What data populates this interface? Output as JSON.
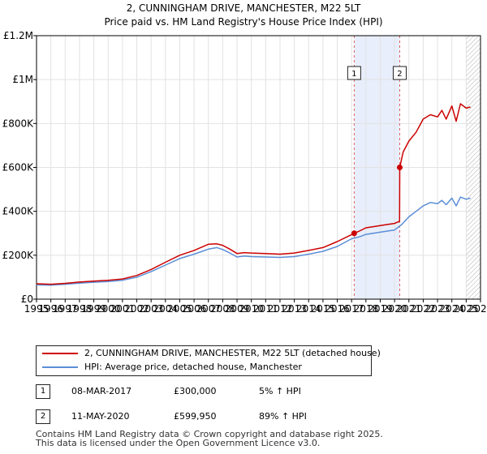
{
  "chart_data": {
    "type": "line",
    "title": "2, CUNNINGHAM DRIVE, MANCHESTER, M22 5LT",
    "subtitle": "Price paid vs. HM Land Registry's House Price Index (HPI)",
    "xlim": [
      1995,
      2026
    ],
    "ylim": [
      0,
      1200000
    ],
    "x_ticks": [
      "1995",
      "1996",
      "1997",
      "1998",
      "1999",
      "2000",
      "2001",
      "2002",
      "2003",
      "2004",
      "2005",
      "2006",
      "2007",
      "2008",
      "2009",
      "2010",
      "2011",
      "2012",
      "2013",
      "2014",
      "2015",
      "2016",
      "2017",
      "2018",
      "2019",
      "2020",
      "2021",
      "2022",
      "2023",
      "2024",
      "2025",
      "2026"
    ],
    "y_ticks": [
      {
        "value": 0,
        "label": "£0"
      },
      {
        "value": 200000,
        "label": "£200K"
      },
      {
        "value": 400000,
        "label": "£400K"
      },
      {
        "value": 600000,
        "label": "£600K"
      },
      {
        "value": 800000,
        "label": "£800K"
      },
      {
        "value": 1000000,
        "label": "£1M"
      },
      {
        "value": 1200000,
        "label": "£1.2M"
      }
    ],
    "grid": true,
    "shaded_band": {
      "from": 2017.18,
      "to": 2020.36
    },
    "future_hatch_from": 2025.0,
    "series": [
      {
        "name": "2, CUNNINGHAM DRIVE, MANCHESTER, M22 5LT (detached house)",
        "color": "#cc0000",
        "x": [
          1995,
          1996,
          1997,
          1998,
          1999,
          2000,
          2001,
          2002,
          2003,
          2004,
          2005,
          2006,
          2007,
          2007.6,
          2008,
          2008.5,
          2009,
          2009.5,
          2010,
          2011,
          2012,
          2013,
          2014,
          2015,
          2016,
          2017.18,
          2017.6,
          2018,
          2018.5,
          2019,
          2019.5,
          2020,
          2020.35,
          2020.36,
          2020.6,
          2021,
          2021.5,
          2022,
          2022.5,
          2023,
          2023.3,
          2023.6,
          2024,
          2024.3,
          2024.6,
          2025,
          2025.3
        ],
        "values": [
          70000,
          68000,
          72000,
          78000,
          82000,
          86000,
          92000,
          108000,
          135000,
          168000,
          200000,
          222000,
          250000,
          252000,
          245000,
          228000,
          208000,
          212000,
          210000,
          208000,
          205000,
          210000,
          222000,
          235000,
          262000,
          300000,
          312000,
          325000,
          330000,
          335000,
          340000,
          345000,
          355000,
          599950,
          670000,
          720000,
          760000,
          820000,
          840000,
          830000,
          860000,
          820000,
          880000,
          810000,
          890000,
          870000,
          875000
        ]
      },
      {
        "name": "HPI: Average price, detached house, Manchester",
        "color": "#5b8ed6",
        "x": [
          1995,
          1996,
          1997,
          1998,
          1999,
          2000,
          2001,
          2002,
          2003,
          2004,
          2005,
          2006,
          2007,
          2007.6,
          2008,
          2008.5,
          2009,
          2009.5,
          2010,
          2011,
          2012,
          2013,
          2014,
          2015,
          2016,
          2017,
          2017.6,
          2018,
          2018.5,
          2019,
          2019.5,
          2020,
          2020.5,
          2021,
          2021.5,
          2022,
          2022.5,
          2023,
          2023.3,
          2023.6,
          2024,
          2024.3,
          2024.6,
          2025,
          2025.3
        ],
        "values": [
          65000,
          64000,
          68000,
          73000,
          77000,
          80000,
          86000,
          100000,
          125000,
          155000,
          185000,
          205000,
          228000,
          235000,
          226000,
          210000,
          192000,
          196000,
          194000,
          192000,
          190000,
          194000,
          205000,
          218000,
          240000,
          275000,
          285000,
          295000,
          300000,
          305000,
          310000,
          315000,
          340000,
          375000,
          400000,
          425000,
          440000,
          435000,
          450000,
          430000,
          460000,
          425000,
          465000,
          455000,
          460000
        ]
      }
    ],
    "annotations": [
      {
        "label": "1",
        "x": 2017.18,
        "value": 300000
      },
      {
        "label": "2",
        "x": 2020.36,
        "value": 599950
      }
    ]
  },
  "legend": {
    "items": [
      {
        "label": "2, CUNNINGHAM DRIVE, MANCHESTER, M22 5LT (detached house)",
        "color": "#cc0000"
      },
      {
        "label": "HPI: Average price, detached house, Manchester",
        "color": "#5b8ed6"
      }
    ]
  },
  "transactions": [
    {
      "num": "1",
      "date": "08-MAR-2017",
      "price": "£300,000",
      "hpi": "5% ↑ HPI"
    },
    {
      "num": "2",
      "date": "11-MAY-2020",
      "price": "£599,950",
      "hpi": "89% ↑ HPI"
    }
  ],
  "footer": {
    "line1": "Contains HM Land Registry data © Crown copyright and database right 2025.",
    "line2": "This data is licensed under the Open Government Licence v3.0."
  }
}
